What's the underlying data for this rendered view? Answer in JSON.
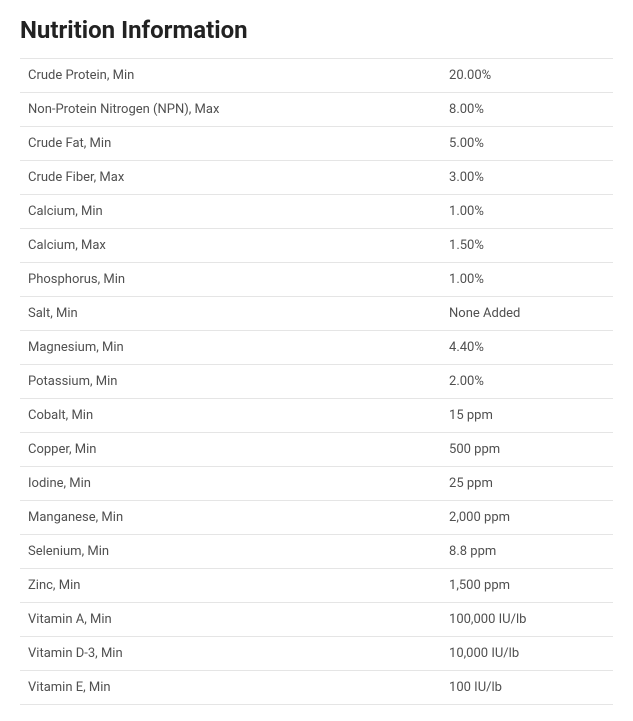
{
  "title": "Nutrition Information",
  "rows": [
    {
      "label": "Crude Protein, Min",
      "value": "20.00%"
    },
    {
      "label": "Non-Protein Nitrogen (NPN), Max",
      "value": "8.00%"
    },
    {
      "label": "Crude Fat, Min",
      "value": "5.00%"
    },
    {
      "label": "Crude Fiber, Max",
      "value": "3.00%"
    },
    {
      "label": "Calcium, Min",
      "value": "1.00%"
    },
    {
      "label": "Calcium, Max",
      "value": "1.50%"
    },
    {
      "label": "Phosphorus, Min",
      "value": "1.00%"
    },
    {
      "label": "Salt, Min",
      "value": "None Added"
    },
    {
      "label": "Magnesium, Min",
      "value": "4.40%"
    },
    {
      "label": "Potassium, Min",
      "value": "2.00%"
    },
    {
      "label": "Cobalt, Min",
      "value": "15 ppm"
    },
    {
      "label": "Copper, Min",
      "value": "500 ppm"
    },
    {
      "label": "Iodine, Min",
      "value": "25 ppm"
    },
    {
      "label": "Manganese, Min",
      "value": "2,000 ppm"
    },
    {
      "label": "Selenium, Min",
      "value": "8.8 ppm"
    },
    {
      "label": "Zinc, Min",
      "value": "1,500 ppm"
    },
    {
      "label": "Vitamin A, Min",
      "value": "100,000 IU/lb"
    },
    {
      "label": "Vitamin D-3, Min",
      "value": "10,000 IU/lb"
    },
    {
      "label": "Vitamin E, Min",
      "value": "100 IU/lb"
    }
  ],
  "styles": {
    "title_color": "#222222",
    "title_fontsize": 24,
    "title_fontweight": 700,
    "row_text_color": "#505050",
    "row_fontsize": 13,
    "border_color": "#e5e5e5",
    "background_color": "#ffffff",
    "label_column_width_pct": 71,
    "value_column_width_pct": 29,
    "cell_padding_v": 9,
    "cell_padding_h": 8
  }
}
